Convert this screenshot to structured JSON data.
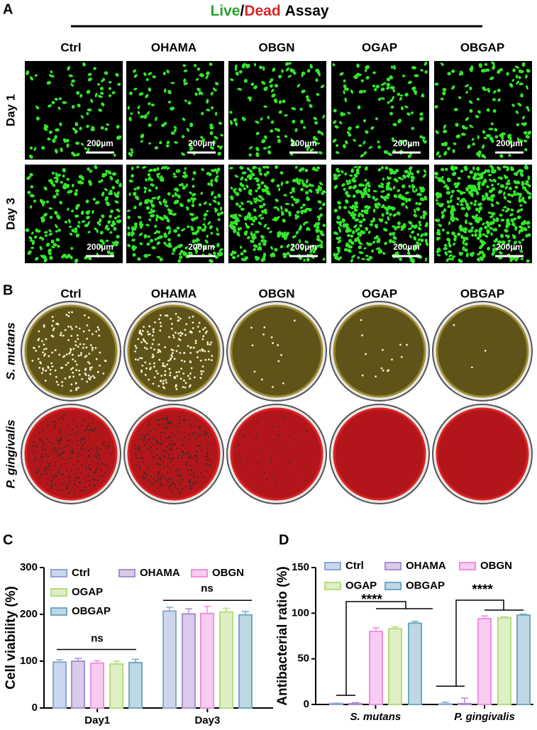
{
  "panel_labels": [
    "A",
    "B",
    "C",
    "D"
  ],
  "panel_a": {
    "title_parts": [
      {
        "text": "Live",
        "color": "#2ca02c"
      },
      {
        "text": "/",
        "color": "#000000"
      },
      {
        "text": "Dead",
        "color": "#d62728"
      },
      {
        "text": "Assay",
        "color": "#000000"
      }
    ],
    "groups": [
      "Ctrl",
      "OHAMA",
      "OBGN",
      "OGAP",
      "OBGAP"
    ],
    "rows": [
      "Day 1",
      "Day 3"
    ],
    "scale_bar": "200µm"
  },
  "panel_b": {
    "groups": [
      "Ctrl",
      "OHAMA",
      "OBGN",
      "OGAP",
      "OBGAP"
    ],
    "rows": [
      "S. mutans",
      "P. gingivalis"
    ]
  },
  "chart_data": [
    {
      "type": "bar",
      "y_label": "Cell viability (%)",
      "categories": [
        "Day1",
        "Day3"
      ],
      "series": [
        {
          "name": "Ctrl",
          "color": "#8ea6d6",
          "values": [
            98,
            207
          ],
          "errors": [
            5,
            8
          ]
        },
        {
          "name": "OHAMA",
          "color": "#a98fd1",
          "values": [
            100,
            201
          ],
          "errors": [
            6,
            11
          ]
        },
        {
          "name": "OBGN",
          "color": "#ee8fe0",
          "values": [
            96,
            202
          ],
          "errors": [
            5,
            15
          ]
        },
        {
          "name": "OGAP",
          "color": "#b6dc7e",
          "values": [
            94,
            205
          ],
          "errors": [
            6,
            8
          ]
        },
        {
          "name": "OBGAP",
          "color": "#6fa9c4",
          "values": [
            97,
            199
          ],
          "errors": [
            7,
            7
          ]
        }
      ],
      "ylim": [
        0,
        300
      ],
      "yticks": [
        0,
        100,
        200,
        300
      ],
      "annotations": [
        {
          "text": "ns"
        },
        {
          "text": "ns"
        }
      ]
    },
    {
      "type": "bar",
      "y_label": "Antibacterial ratio (%)",
      "categories": [
        "S. mutans",
        "P. gingivalis"
      ],
      "series": [
        {
          "name": "Ctrl",
          "color": "#8ea6d6",
          "values": [
            1,
            0.5
          ],
          "errors": [
            0.5,
            2
          ]
        },
        {
          "name": "OHAMA",
          "color": "#a98fd1",
          "values": [
            1,
            1
          ],
          "errors": [
            1,
            6
          ]
        },
        {
          "name": "OBGN",
          "color": "#ee8fe0",
          "values": [
            80,
            94
          ],
          "errors": [
            4,
            3
          ]
        },
        {
          "name": "OGAP",
          "color": "#b6dc7e",
          "values": [
            83,
            95
          ],
          "errors": [
            2,
            1
          ]
        },
        {
          "name": "OBGAP",
          "color": "#6fa9c4",
          "values": [
            89,
            98
          ],
          "errors": [
            2,
            1
          ]
        }
      ],
      "ylim": [
        0,
        150
      ],
      "yticks": [
        0,
        50,
        100,
        150
      ],
      "annotations": [
        {
          "text": "****"
        },
        {
          "text": "****"
        }
      ]
    }
  ]
}
